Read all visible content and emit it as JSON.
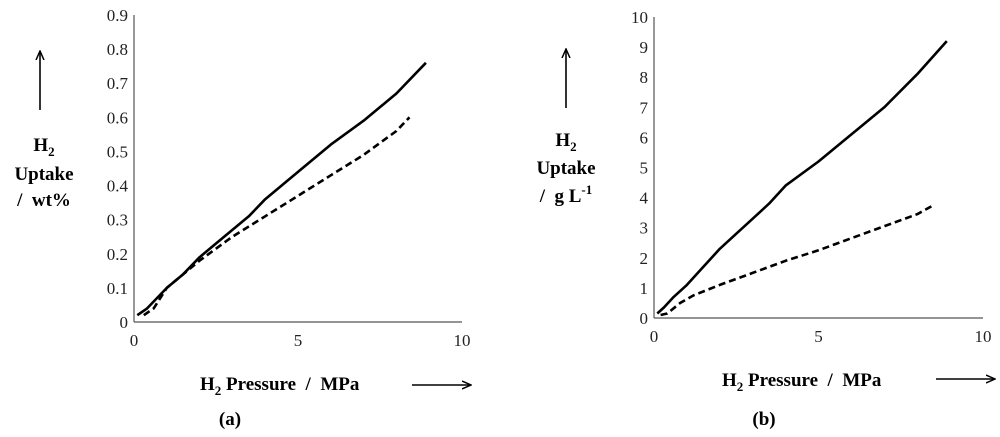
{
  "chart_data": [
    {
      "type": "line",
      "panel_label": "(a)",
      "xlabel": "H2 Pressure  /  MPa",
      "xlabel_main": "H",
      "xlabel_sub": "2",
      "xlabel_rest": " Pressure  /  MPa",
      "ylabel_line1_main": "H",
      "ylabel_line1_sub": "2",
      "ylabel_line2": "Uptake",
      "ylabel_line3": "/  wt%",
      "xlim": [
        0,
        10
      ],
      "ylim": [
        0,
        0.9
      ],
      "x_ticks": [
        "0",
        "5",
        "10"
      ],
      "y_ticks": [
        "0",
        "0.1",
        "0.2",
        "0.3",
        "0.4",
        "0.5",
        "0.6",
        "0.7",
        "0.8",
        "0.9"
      ],
      "series": [
        {
          "style": "solid",
          "x": [
            0.1,
            0.4,
            1.0,
            1.5,
            2.0,
            2.5,
            3.0,
            3.5,
            4.0,
            5.0,
            6.0,
            7.0,
            8.0,
            8.9
          ],
          "y": [
            0.02,
            0.04,
            0.1,
            0.14,
            0.19,
            0.23,
            0.27,
            0.31,
            0.36,
            0.44,
            0.52,
            0.59,
            0.67,
            0.76
          ]
        },
        {
          "style": "dashed",
          "x": [
            0.3,
            0.6,
            1.0,
            1.5,
            2.0,
            3.0,
            4.0,
            5.0,
            6.0,
            7.0,
            8.0,
            8.4
          ],
          "y": [
            0.02,
            0.04,
            0.1,
            0.14,
            0.18,
            0.25,
            0.31,
            0.37,
            0.43,
            0.49,
            0.56,
            0.6
          ]
        }
      ]
    },
    {
      "type": "line",
      "panel_label": "(b)",
      "xlabel": "H2 Pressure  /  MPa",
      "xlabel_main": "H",
      "xlabel_sub": "2",
      "xlabel_rest": " Pressure  /  MPa",
      "ylabel_line1_main": "H",
      "ylabel_line1_sub": "2",
      "ylabel_line2": "Uptake",
      "ylabel_line3_main": "/  g L",
      "ylabel_line3_sup": "-1",
      "xlim": [
        0,
        10
      ],
      "ylim": [
        0,
        10
      ],
      "x_ticks": [
        "0",
        "5",
        "10"
      ],
      "y_ticks": [
        "0",
        "1",
        "2",
        "3",
        "4",
        "5",
        "6",
        "7",
        "8",
        "9",
        "10"
      ],
      "series": [
        {
          "style": "solid",
          "x": [
            0.1,
            0.3,
            0.6,
            1.0,
            1.5,
            2.0,
            2.5,
            3.0,
            3.5,
            4.0,
            5.0,
            6.0,
            7.0,
            8.0,
            8.9
          ],
          "y": [
            0.15,
            0.35,
            0.7,
            1.1,
            1.7,
            2.3,
            2.8,
            3.3,
            3.8,
            4.4,
            5.2,
            6.1,
            7.0,
            8.1,
            9.2
          ]
        },
        {
          "style": "dashed",
          "x": [
            0.2,
            0.4,
            0.8,
            1.2,
            2.0,
            3.0,
            4.0,
            5.0,
            6.0,
            7.0,
            8.0,
            8.5
          ],
          "y": [
            0.1,
            0.15,
            0.5,
            0.75,
            1.1,
            1.5,
            1.9,
            2.25,
            2.65,
            3.05,
            3.45,
            3.75
          ]
        }
      ]
    }
  ]
}
